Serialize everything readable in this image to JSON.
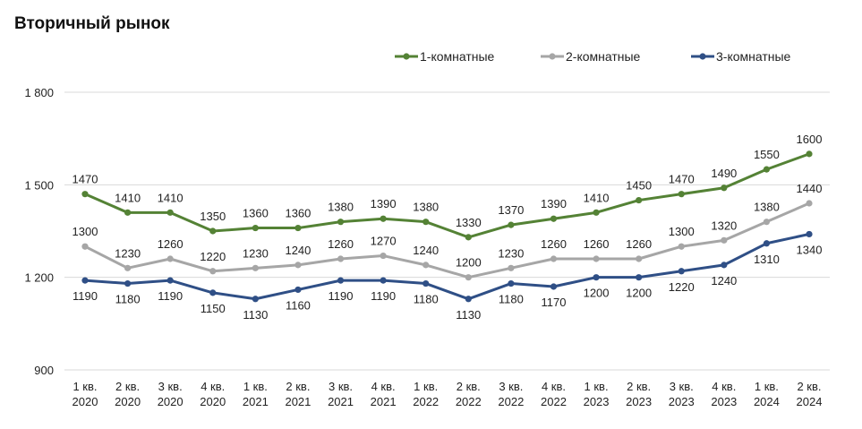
{
  "chart_data": {
    "type": "line",
    "title": "Вторичный рынок",
    "categories": [
      [
        "1 кв.",
        "2020"
      ],
      [
        "2 кв.",
        "2020"
      ],
      [
        "3 кв.",
        "2020"
      ],
      [
        "4 кв.",
        "2020"
      ],
      [
        "1 кв.",
        "2021"
      ],
      [
        "2 кв.",
        "2021"
      ],
      [
        "3 кв.",
        "2021"
      ],
      [
        "4 кв.",
        "2021"
      ],
      [
        "1 кв.",
        "2022"
      ],
      [
        "2 кв.",
        "2022"
      ],
      [
        "3 кв.",
        "2022"
      ],
      [
        "4 кв.",
        "2022"
      ],
      [
        "1 кв.",
        "2023"
      ],
      [
        "2 кв.",
        "2023"
      ],
      [
        "3 кв.",
        "2023"
      ],
      [
        "4 кв.",
        "2023"
      ],
      [
        "1 кв.",
        "2024"
      ],
      [
        "2 кв.",
        "2024"
      ]
    ],
    "ylim": [
      900,
      1800
    ],
    "yticks": [
      900,
      1200,
      1500,
      1800
    ],
    "ytick_labels": [
      "900",
      "1 200",
      "1 500",
      "1 800"
    ],
    "grid": true,
    "legend_position": "top-right",
    "series": [
      {
        "name": "1-комнатные",
        "color": "#548235",
        "label_pos": "above",
        "values": [
          1470,
          1410,
          1410,
          1350,
          1360,
          1360,
          1380,
          1390,
          1380,
          1330,
          1370,
          1390,
          1410,
          1450,
          1470,
          1490,
          1550,
          1600
        ]
      },
      {
        "name": "2-комнатные",
        "color": "#a6a6a6",
        "label_pos": "above",
        "values": [
          1300,
          1230,
          1260,
          1220,
          1230,
          1240,
          1260,
          1270,
          1240,
          1200,
          1230,
          1260,
          1260,
          1260,
          1300,
          1320,
          1380,
          1440
        ]
      },
      {
        "name": "3-комнатные",
        "color": "#2f4f86",
        "label_pos": "below",
        "values": [
          1190,
          1180,
          1190,
          1150,
          1130,
          1160,
          1190,
          1190,
          1180,
          1130,
          1180,
          1170,
          1200,
          1200,
          1220,
          1240,
          1310,
          1340
        ]
      }
    ]
  }
}
